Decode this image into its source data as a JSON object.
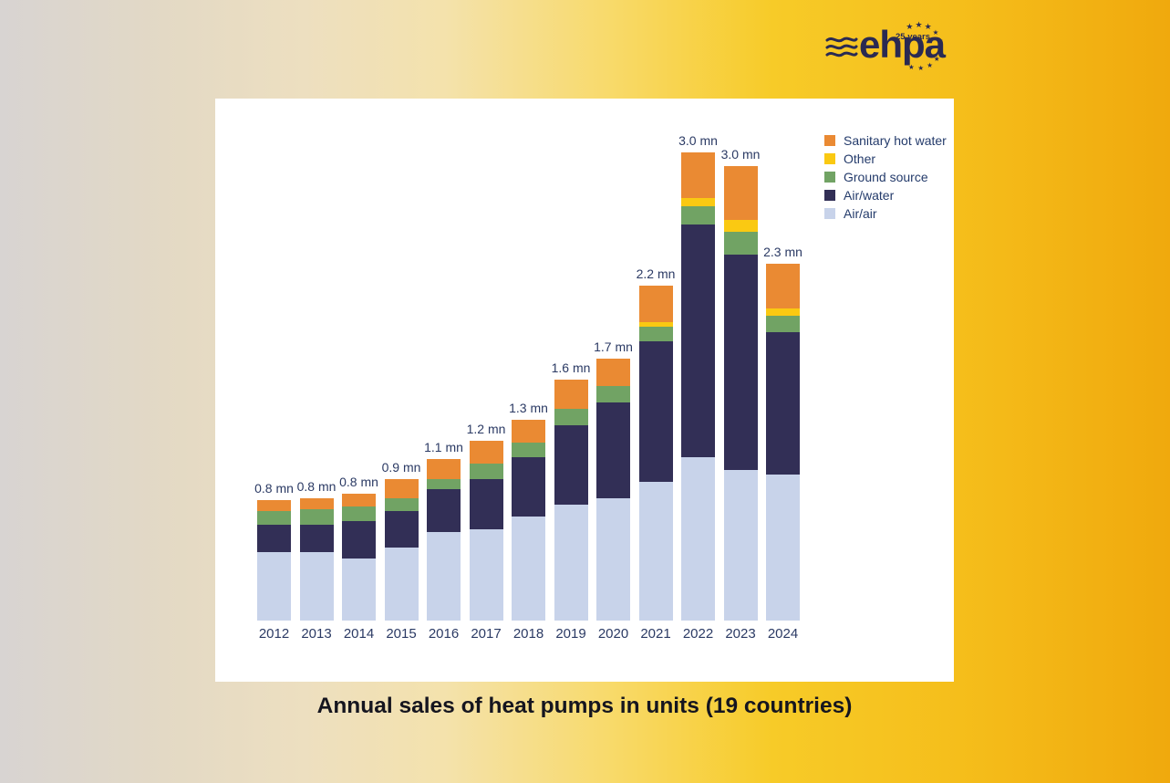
{
  "logo": {
    "brand": "ehpa",
    "anniversary": "25 years"
  },
  "caption": "Annual sales of heat pumps in units (19 countries)",
  "legend": {
    "items": [
      {
        "label": "Sanitary hot water",
        "color": "#ea8a33"
      },
      {
        "label": "Other",
        "color": "#fac912"
      },
      {
        "label": "Ground source",
        "color": "#71a364"
      },
      {
        "label": "Air/water",
        "color": "#322f56"
      },
      {
        "label": "Air/air",
        "color": "#c8d3ea"
      }
    ]
  },
  "chart_data": {
    "type": "bar",
    "stacked": true,
    "title": "Annual sales of heat pumps in units (19 countries)",
    "unit": "million units",
    "grid": false,
    "legend_position": "top-right",
    "categories": [
      "2012",
      "2013",
      "2014",
      "2015",
      "2016",
      "2017",
      "2018",
      "2019",
      "2020",
      "2021",
      "2022",
      "2023",
      "2024"
    ],
    "series": [
      {
        "name": "Air/air",
        "color": "#c8d3ea",
        "values": [
          0.45,
          0.45,
          0.41,
          0.48,
          0.58,
          0.6,
          0.68,
          0.76,
          0.8,
          0.91,
          1.07,
          0.99,
          0.96
        ]
      },
      {
        "name": "Air/water",
        "color": "#322f56",
        "values": [
          0.18,
          0.18,
          0.24,
          0.24,
          0.28,
          0.33,
          0.39,
          0.52,
          0.63,
          0.92,
          1.53,
          1.41,
          0.93
        ]
      },
      {
        "name": "Ground source",
        "color": "#71a364",
        "values": [
          0.09,
          0.1,
          0.1,
          0.08,
          0.07,
          0.1,
          0.1,
          0.11,
          0.11,
          0.1,
          0.12,
          0.15,
          0.11
        ]
      },
      {
        "name": "Other",
        "color": "#fac912",
        "values": [
          0.0,
          0.0,
          0.0,
          0.0,
          0.0,
          0.0,
          0.0,
          0.0,
          0.0,
          0.03,
          0.05,
          0.08,
          0.05
        ]
      },
      {
        "name": "Sanitary hot water",
        "color": "#ea8a33",
        "values": [
          0.07,
          0.07,
          0.08,
          0.13,
          0.13,
          0.15,
          0.15,
          0.19,
          0.18,
          0.24,
          0.3,
          0.35,
          0.29
        ]
      }
    ],
    "totals_labels": [
      "0.8 mn",
      "0.8 mn",
      "0.8 mn",
      "0.9 mn",
      "1.1 mn",
      "1.2 mn",
      "1.3 mn",
      "1.6 mn",
      "1.7 mn",
      "2.2 mn",
      "3.0 mn",
      "3.0 mn",
      "2.3 mn"
    ]
  },
  "colors": {
    "accent_navy": "#2a2a52",
    "text_navy": "#2b3a64",
    "card_bg": "#ffffff"
  }
}
